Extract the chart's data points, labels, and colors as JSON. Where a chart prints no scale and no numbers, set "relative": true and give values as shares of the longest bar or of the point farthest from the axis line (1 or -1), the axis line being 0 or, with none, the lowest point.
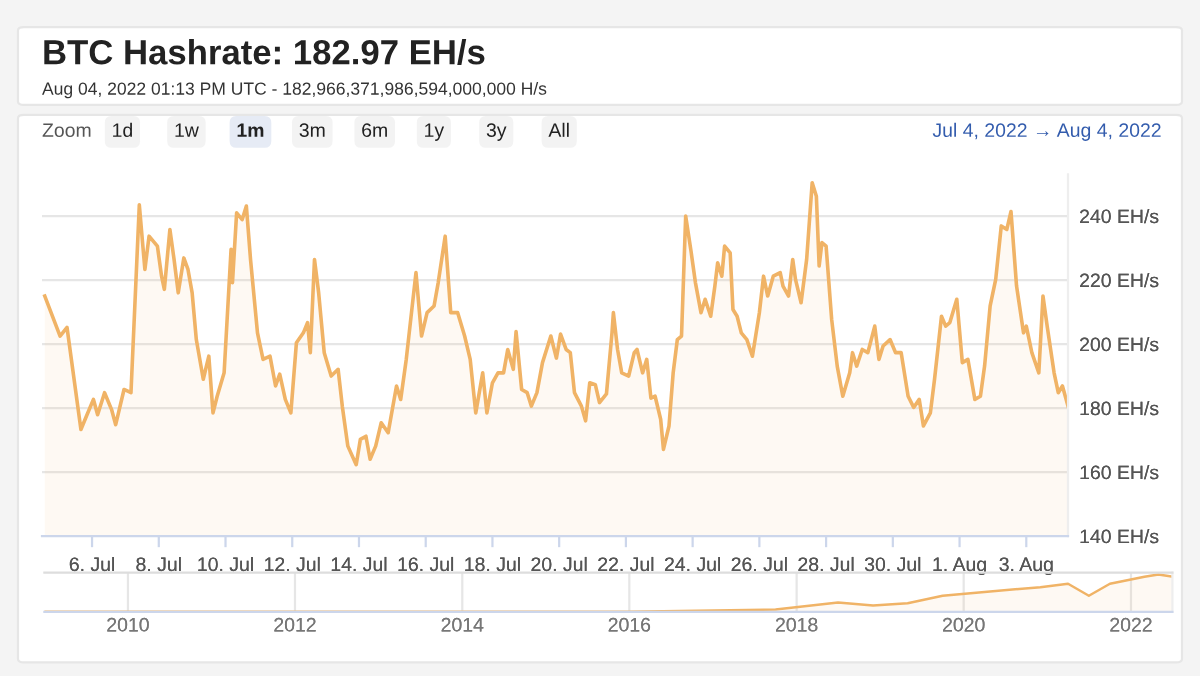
{
  "chart_data": [
    {
      "type": "area",
      "title": "BTC Hashrate: 182.97 EH/s",
      "subtitle": "Aug 04, 2022 01:13 PM UTC - 182,966,371,986,594,000,000 H/s",
      "annotations": [
        "Zoom",
        "1d",
        "1w",
        "1m",
        "3m",
        "6m",
        "1y",
        "3y",
        "All",
        "Jul 4, 2022 → Aug 4, 2022"
      ],
      "x": [
        "2022-07-04T14:00",
        "2022-07-05T01:00",
        "2022-07-05T06:00",
        "2022-07-05T16:00",
        "2022-07-05T20:00",
        "2022-07-06T01:00",
        "2022-07-06T04:00",
        "2022-07-06T09:00",
        "2022-07-06T14:00",
        "2022-07-06T17:00",
        "2022-07-06T23:00",
        "2022-07-07T04:00",
        "2022-07-07T10:00",
        "2022-07-07T14:00",
        "2022-07-07T17:00",
        "2022-07-07T23:00",
        "2022-07-08T02:00",
        "2022-07-08T04:00",
        "2022-07-08T08:00",
        "2022-07-08T11:00",
        "2022-07-08T14:00",
        "2022-07-08T18:00",
        "2022-07-08T21:00",
        "2022-07-09T00:00",
        "2022-07-09T03:00",
        "2022-07-09T08:00",
        "2022-07-09T12:00",
        "2022-07-09T15:00",
        "2022-07-09T18:00",
        "2022-07-09T23:00",
        "2022-07-10T04:00",
        "2022-07-10T05:00",
        "2022-07-10T08:00",
        "2022-07-10T12:00",
        "2022-07-10T15:00",
        "2022-07-10T18:00",
        "2022-07-10T23:00",
        "2022-07-11T03:00",
        "2022-07-11T08:00",
        "2022-07-11T12:00",
        "2022-07-11T15:00",
        "2022-07-11T19:00",
        "2022-07-11T23:00",
        "2022-07-12T03:00",
        "2022-07-12T08:00",
        "2022-07-12T11:00",
        "2022-07-12T13:00",
        "2022-07-12T16:00",
        "2022-07-12T19:00",
        "2022-07-12T23:00",
        "2022-07-13T04:00",
        "2022-07-13T09:00",
        "2022-07-13T12:00",
        "2022-07-13T16:00",
        "2022-07-13T22:00",
        "2022-07-14T01:00",
        "2022-07-14T05:00",
        "2022-07-14T08:00",
        "2022-07-14T12:00",
        "2022-07-14T16:00",
        "2022-07-14T21:00",
        "2022-07-15T03:00",
        "2022-07-15T06:00",
        "2022-07-15T10:00",
        "2022-07-15T17:00",
        "2022-07-15T21:00",
        "2022-07-16T01:00",
        "2022-07-16T06:00",
        "2022-07-16T09:00",
        "2022-07-16T14:00",
        "2022-07-16T18:00",
        "2022-07-16T23:00",
        "2022-07-17T04:00",
        "2022-07-17T08:00",
        "2022-07-17T12:00",
        "2022-07-17T17:00",
        "2022-07-17T20:00",
        "2022-07-18T00:00",
        "2022-07-18T04:00",
        "2022-07-18T08:00",
        "2022-07-18T11:00",
        "2022-07-18T15:00",
        "2022-07-18T17:00",
        "2022-07-18T21:00",
        "2022-07-19T01:00",
        "2022-07-19T04:00",
        "2022-07-19T08:00",
        "2022-07-19T12:00",
        "2022-07-19T18:00",
        "2022-07-19T22:00",
        "2022-07-20T01:00",
        "2022-07-20T05:00",
        "2022-07-20T08:00",
        "2022-07-20T11:00",
        "2022-07-20T16:00",
        "2022-07-20T19:00",
        "2022-07-20T22:00",
        "2022-07-21T02:00",
        "2022-07-21T05:00",
        "2022-07-21T10:00",
        "2022-07-21T14:00",
        "2022-07-21T15:00",
        "2022-07-21T18:00",
        "2022-07-21T21:00",
        "2022-07-22T02:00",
        "2022-07-22T06:00",
        "2022-07-22T08:00",
        "2022-07-22T12:00",
        "2022-07-22T15:00",
        "2022-07-22T18:00",
        "2022-07-22T21:00",
        "2022-07-23T01:00",
        "2022-07-23T03:00",
        "2022-07-23T07:00",
        "2022-07-23T10:00",
        "2022-07-23T13:00",
        "2022-07-23T16:00",
        "2022-07-23T19:00",
        "2022-07-23T23:00",
        "2022-07-24T02:00",
        "2022-07-24T06:00",
        "2022-07-24T09:00",
        "2022-07-24T13:00",
        "2022-07-24T16:00",
        "2022-07-24T18:00",
        "2022-07-24T21:00",
        "2022-07-24T23:00",
        "2022-07-25T03:00",
        "2022-07-25T05:00",
        "2022-07-25T08:00",
        "2022-07-25T11:00",
        "2022-07-25T15:00",
        "2022-07-25T19:00",
        "2022-07-26T00:00",
        "2022-07-26T03:00",
        "2022-07-26T06:00",
        "2022-07-26T10:00",
        "2022-07-26T15:00",
        "2022-07-26T17:00",
        "2022-07-26T21:00",
        "2022-07-27T00:00",
        "2022-07-27T02:00",
        "2022-07-27T06:00",
        "2022-07-27T10:00",
        "2022-07-27T14:00",
        "2022-07-27T17:00",
        "2022-07-27T19:00",
        "2022-07-27T21:00",
        "2022-07-28T00:00",
        "2022-07-28T04:00",
        "2022-07-28T08:00",
        "2022-07-28T12:00",
        "2022-07-28T17:00",
        "2022-07-28T19:00",
        "2022-07-28T22:00",
        "2022-07-29T02:00",
        "2022-07-29T06:00",
        "2022-07-29T11:00",
        "2022-07-29T14:00",
        "2022-07-29T17:00",
        "2022-07-29T22:00",
        "2022-07-30T02:00",
        "2022-07-30T06:00",
        "2022-07-30T11:00",
        "2022-07-30T15:00",
        "2022-07-30T19:00",
        "2022-07-30T22:00",
        "2022-07-31T03:00",
        "2022-07-31T06:00",
        "2022-07-31T11:00",
        "2022-07-31T14:00",
        "2022-07-31T17:00",
        "2022-07-31T22:00",
        "2022-08-01T02:00",
        "2022-08-01T06:00",
        "2022-08-01T11:00",
        "2022-08-01T15:00",
        "2022-08-01T18:00",
        "2022-08-01T22:00",
        "2022-08-02T02:00",
        "2022-08-02T06:00",
        "2022-08-02T10:00",
        "2022-08-02T13:00",
        "2022-08-02T17:00",
        "2022-08-02T22:00",
        "2022-08-03T00:00",
        "2022-08-03T04:00",
        "2022-08-03T09:00",
        "2022-08-03T12:00",
        "2022-08-03T15:00",
        "2022-08-03T20:00",
        "2022-08-03T23:00",
        "2022-08-04T02:00",
        "2022-08-04T06:00"
      ],
      "series": [
        {
          "color": "#f0b366",
          "values": [
            215.0,
            202.5,
            205.2,
            173.3,
            177.5,
            182.7,
            177.9,
            184.8,
            179.6,
            174.8,
            185.8,
            184.8,
            243.5,
            223.3,
            233.7,
            230.6,
            221.2,
            217.1,
            235.8,
            226.4,
            216.0,
            226.9,
            223.3,
            216.0,
            201.4,
            189.0,
            196.2,
            178.5,
            183.7,
            191.0,
            229.6,
            219.2,
            241.0,
            238.9,
            243.1,
            226.4,
            203.5,
            195.2,
            196.2,
            186.9,
            190.6,
            182.7,
            178.5,
            200.4,
            203.5,
            206.7,
            197.3,
            226.4,
            216.0,
            197.3,
            190.0,
            192.1,
            180.6,
            168.1,
            162.3,
            170.2,
            171.2,
            164.0,
            168.1,
            175.4,
            172.3,
            186.9,
            182.7,
            195.2,
            222.3,
            202.5,
            209.8,
            211.9,
            219.2,
            233.7,
            209.8,
            209.8,
            202.5,
            195.2,
            178.5,
            191.0,
            178.5,
            187.9,
            191.0,
            191.0,
            198.3,
            192.1,
            203.9,
            185.8,
            184.8,
            180.6,
            184.8,
            194.2,
            202.5,
            195.6,
            203.1,
            198.3,
            197.3,
            184.8,
            180.6,
            176.0,
            187.9,
            187.3,
            181.7,
            184.4,
            203.5,
            209.8,
            198.3,
            191.0,
            190.0,
            197.3,
            198.3,
            191.0,
            195.2,
            183.1,
            183.7,
            176.5,
            167.1,
            174.4,
            191.0,
            201.4,
            202.5,
            240.0,
            228.5,
            219.2,
            209.8,
            214.0,
            208.7,
            218.1,
            225.4,
            221.2,
            230.6,
            228.5,
            210.8,
            208.7,
            203.5,
            201.4,
            196.2,
            209.8,
            221.2,
            215.0,
            221.2,
            222.3,
            218.1,
            215.0,
            226.4,
            220.2,
            212.9,
            226.4,
            250.4,
            246.2,
            224.4,
            231.7,
            230.6,
            207.7,
            193.1,
            183.7,
            191.0,
            197.3,
            193.1,
            198.3,
            197.3,
            205.6,
            195.2,
            199.4,
            201.4,
            197.3,
            197.3,
            183.7,
            180.2,
            182.7,
            174.4,
            178.5,
            189.0,
            208.7,
            205.6,
            206.7,
            214.0,
            194.2,
            195.2,
            182.7,
            183.7,
            193.1,
            211.9,
            220.2,
            236.9,
            235.8,
            241.4,
            218.1,
            203.5,
            205.6,
            197.3,
            191.0,
            215.0,
            205.6,
            191.0,
            184.8,
            186.9,
            180.6
          ]
        }
      ],
      "xlim": [
        "2022-07-04T12:00",
        "2022-08-04T06:00"
      ],
      "xticks": [
        {
          "value": "2022-07-06",
          "label": "6. Jul"
        },
        {
          "value": "2022-07-08",
          "label": "8. Jul"
        },
        {
          "value": "2022-07-10",
          "label": "10. Jul"
        },
        {
          "value": "2022-07-12",
          "label": "12. Jul"
        },
        {
          "value": "2022-07-14",
          "label": "14. Jul"
        },
        {
          "value": "2022-07-16",
          "label": "16. Jul"
        },
        {
          "value": "2022-07-18",
          "label": "18. Jul"
        },
        {
          "value": "2022-07-20",
          "label": "20. Jul"
        },
        {
          "value": "2022-07-22",
          "label": "22. Jul"
        },
        {
          "value": "2022-07-24",
          "label": "24. Jul"
        },
        {
          "value": "2022-07-26",
          "label": "26. Jul"
        },
        {
          "value": "2022-07-28",
          "label": "28. Jul"
        },
        {
          "value": "2022-07-30",
          "label": "30. Jul"
        },
        {
          "value": "2022-08-01",
          "label": "1. Aug"
        },
        {
          "value": "2022-08-03",
          "label": "3. Aug"
        }
      ],
      "ylim": [
        140,
        253
      ],
      "yticks": [
        {
          "value": 140,
          "label": "140 EH/s"
        },
        {
          "value": 160,
          "label": "160 EH/s"
        },
        {
          "value": 180,
          "label": "180 EH/s"
        },
        {
          "value": 200,
          "label": "200 EH/s"
        },
        {
          "value": 220,
          "label": "220 EH/s"
        },
        {
          "value": 240,
          "label": "240 EH/s"
        }
      ],
      "grid": "y",
      "legend": false,
      "marker": "none",
      "line_style": "solid"
    },
    {
      "type": "area",
      "relative": true,
      "tick_labels": "x",
      "x": [
        "2009-01",
        "2016-01",
        "2017-10",
        "2018-07",
        "2018-12",
        "2019-05",
        "2019-10",
        "2020-04",
        "2020-12",
        "2021-04",
        "2021-07",
        "2021-10",
        "2022-03",
        "2022-05",
        "2022-07"
      ],
      "series": [
        {
          "color": "#f0b366",
          "values": [
            0,
            0,
            0.06,
            0.25,
            0.17,
            0.23,
            0.43,
            0.53,
            0.66,
            0.75,
            0.43,
            0.75,
            0.94,
            1,
            0.94
          ]
        }
      ],
      "xlim": [
        "2009-01",
        "2022-07"
      ],
      "xticks": [
        {
          "value": "2010-01",
          "label": "2010"
        },
        {
          "value": "2012-01",
          "label": "2012"
        },
        {
          "value": "2014-01",
          "label": "2014"
        },
        {
          "value": "2016-01",
          "label": "2016"
        },
        {
          "value": "2018-01",
          "label": "2018"
        },
        {
          "value": "2020-01",
          "label": "2020"
        },
        {
          "value": "2022-01",
          "label": "2022"
        }
      ],
      "grid": "x",
      "legend": false,
      "marker": "none",
      "line_style": "solid"
    }
  ]
}
